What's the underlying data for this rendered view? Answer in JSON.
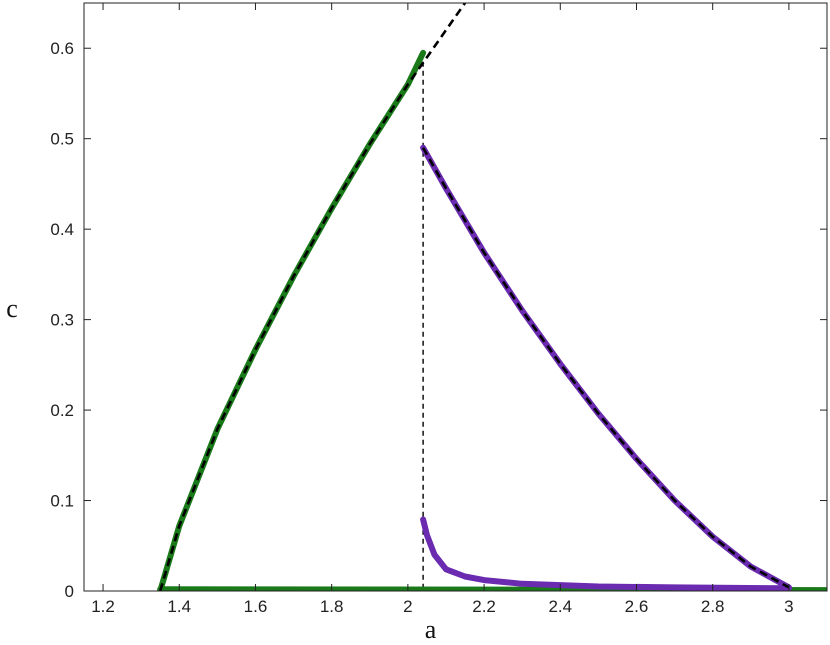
{
  "chart_data": {
    "type": "line",
    "title": "",
    "xlabel": "a",
    "ylabel": "c",
    "xlim": [
      1.15,
      3.1
    ],
    "ylim": [
      0,
      0.65
    ],
    "xticks": [
      1.2,
      1.4,
      1.6,
      1.8,
      2,
      2.2,
      2.4,
      2.6,
      2.8,
      3
    ],
    "xtick_labels": [
      "1.2",
      "1.4",
      "1.6",
      "1.8",
      "2",
      "2.2",
      "2.4",
      "2.6",
      "2.8",
      "3"
    ],
    "yticks": [
      0,
      0.1,
      0.2,
      0.3,
      0.4,
      0.5,
      0.6
    ],
    "ytick_labels": [
      "0",
      "0.1",
      "0.2",
      "0.3",
      "0.4",
      "0.5",
      "0.6"
    ],
    "grid": false,
    "legend": "none",
    "vertical_line_x": 2.04,
    "series": [
      {
        "color": "#1a7a1a",
        "style": "solid-thick",
        "x": [
          1.35,
          1.4,
          1.5,
          1.6,
          1.7,
          1.8,
          1.9,
          2.0,
          2.04
        ],
        "y": [
          0.0,
          0.072,
          0.179,
          0.267,
          0.348,
          0.423,
          0.494,
          0.56,
          0.595
        ]
      },
      {
        "color": "#1a7a1a",
        "style": "solid-thick",
        "x": [
          1.35,
          3.1
        ],
        "y": [
          0.002,
          0.001
        ]
      },
      {
        "color": "#6a2bb0",
        "style": "solid-thick",
        "x": [
          2.04,
          2.1,
          2.2,
          2.3,
          2.4,
          2.5,
          2.6,
          2.7,
          2.8,
          2.9,
          3.0
        ],
        "y": [
          0.49,
          0.445,
          0.374,
          0.31,
          0.251,
          0.196,
          0.146,
          0.1,
          0.06,
          0.027,
          0.004
        ]
      },
      {
        "color": "#6a2bb0",
        "style": "solid-thick",
        "x": [
          2.04,
          2.05,
          2.07,
          2.1,
          2.15,
          2.2,
          2.3,
          2.5,
          2.7,
          3.0
        ],
        "y": [
          0.079,
          0.062,
          0.04,
          0.024,
          0.016,
          0.012,
          0.008,
          0.005,
          0.004,
          0.003
        ]
      },
      {
        "color": "#000000",
        "style": "dashed",
        "x": [
          1.35,
          1.4,
          1.5,
          1.6,
          1.7,
          1.8,
          1.9,
          2.0,
          2.1,
          2.15
        ],
        "y": [
          0.0,
          0.072,
          0.179,
          0.267,
          0.348,
          0.423,
          0.494,
          0.56,
          0.62,
          0.65
        ]
      },
      {
        "color": "#000000",
        "style": "dashed",
        "x": [
          2.04,
          2.1,
          2.2,
          2.3,
          2.4,
          2.5,
          2.6,
          2.7,
          2.8,
          2.9,
          3.0
        ],
        "y": [
          0.49,
          0.445,
          0.374,
          0.31,
          0.251,
          0.196,
          0.146,
          0.1,
          0.06,
          0.027,
          0.004
        ]
      }
    ]
  }
}
